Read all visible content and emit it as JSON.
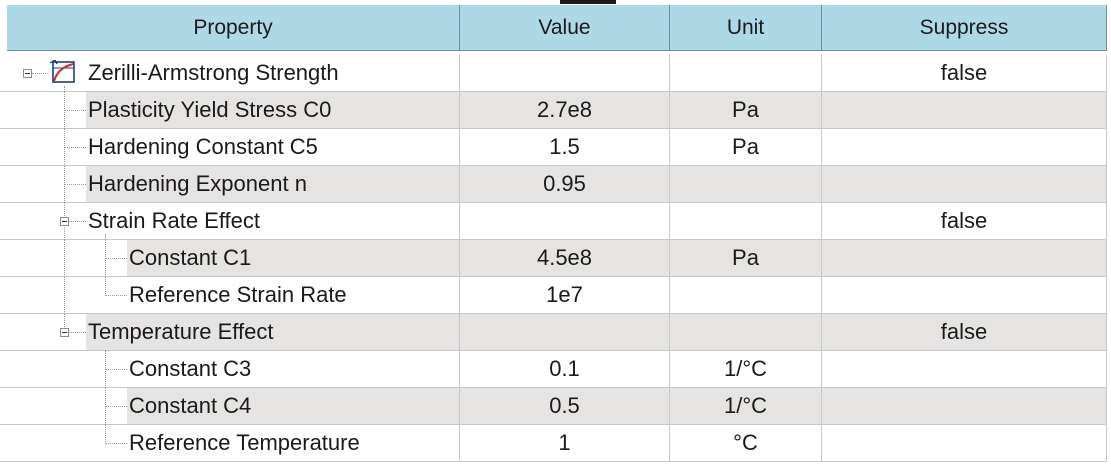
{
  "columns": [
    "Property",
    "Value",
    "Unit",
    "Suppress"
  ],
  "rows": [
    {
      "label": "Zerilli-Armstrong Strength",
      "value": "",
      "unit": "",
      "suppress": "false"
    },
    {
      "label": "Plasticity Yield Stress C0",
      "value": "2.7e8",
      "unit": "Pa",
      "suppress": ""
    },
    {
      "label": "Hardening Constant C5",
      "value": "1.5",
      "unit": "Pa",
      "suppress": ""
    },
    {
      "label": "Hardening Exponent n",
      "value": "0.95",
      "unit": "",
      "suppress": ""
    },
    {
      "label": "Strain Rate Effect",
      "value": "",
      "unit": "",
      "suppress": "false"
    },
    {
      "label": "Constant C1",
      "value": "4.5e8",
      "unit": "Pa",
      "suppress": ""
    },
    {
      "label": "Reference Strain Rate",
      "value": "1e7",
      "unit": "",
      "suppress": ""
    },
    {
      "label": "Temperature Effect",
      "value": "",
      "unit": "",
      "suppress": "false"
    },
    {
      "label": "Constant C3",
      "value": "0.1",
      "unit": "1/°C",
      "suppress": ""
    },
    {
      "label": "Constant C4",
      "value": "0.5",
      "unit": "1/°C",
      "suppress": ""
    },
    {
      "label": "Reference Temperature",
      "value": "1",
      "unit": "°C",
      "suppress": ""
    }
  ],
  "icons": {
    "root": "strength-model-icon",
    "expander": "collapse-toggle-icon"
  },
  "colors": {
    "header_bg": "#add8e6",
    "shaded_cell": "#e6e4e2",
    "icon_frame": "#1f3b8c",
    "icon_curve": "#d22b2b"
  }
}
